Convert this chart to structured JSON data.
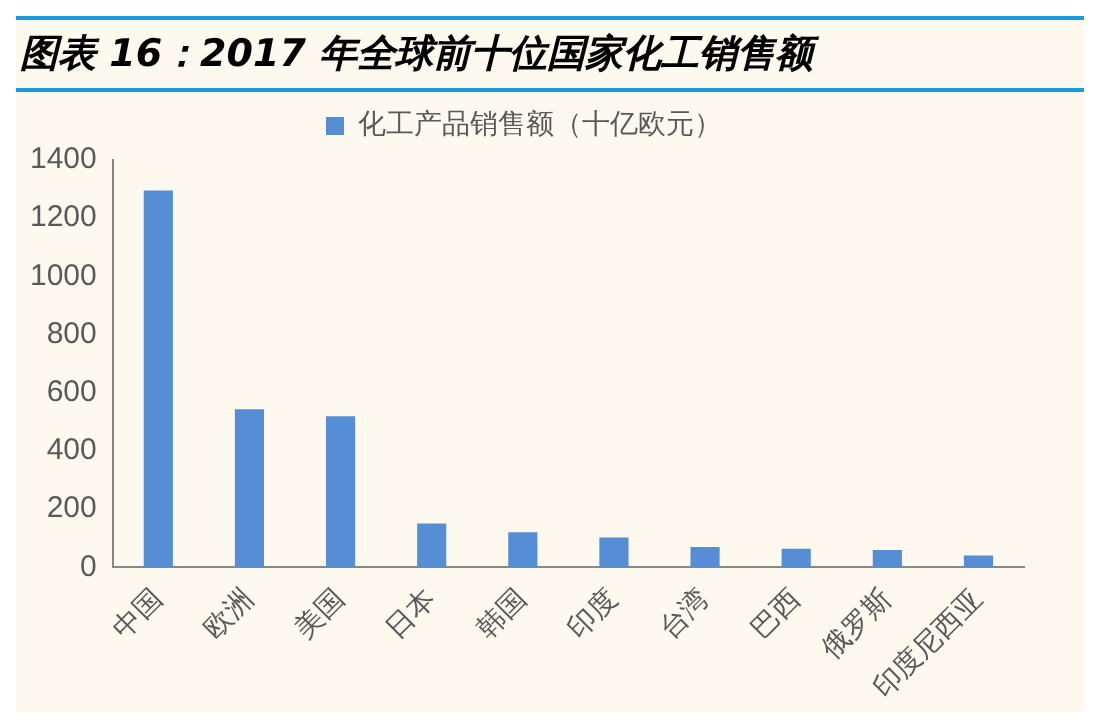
{
  "chart_data": {
    "type": "bar",
    "title": "图表 16：2017 年全球前十位国家化工销售额",
    "categories": [
      "中国",
      "欧洲",
      "美国",
      "日本",
      "韩国",
      "印度",
      "台湾",
      "巴西",
      "俄罗斯",
      "印度尼西亚"
    ],
    "series": [
      {
        "name": "化工产品销售额（十亿欧元）",
        "color": "#558ed5",
        "values": [
          1295,
          543,
          519,
          150,
          120,
          102,
          70,
          64,
          59,
          40
        ]
      }
    ],
    "ylim": [
      0,
      1400
    ],
    "yticks": [
      0,
      200,
      400,
      600,
      800,
      1000,
      1200,
      1400
    ],
    "grid": false,
    "legend": "top"
  }
}
